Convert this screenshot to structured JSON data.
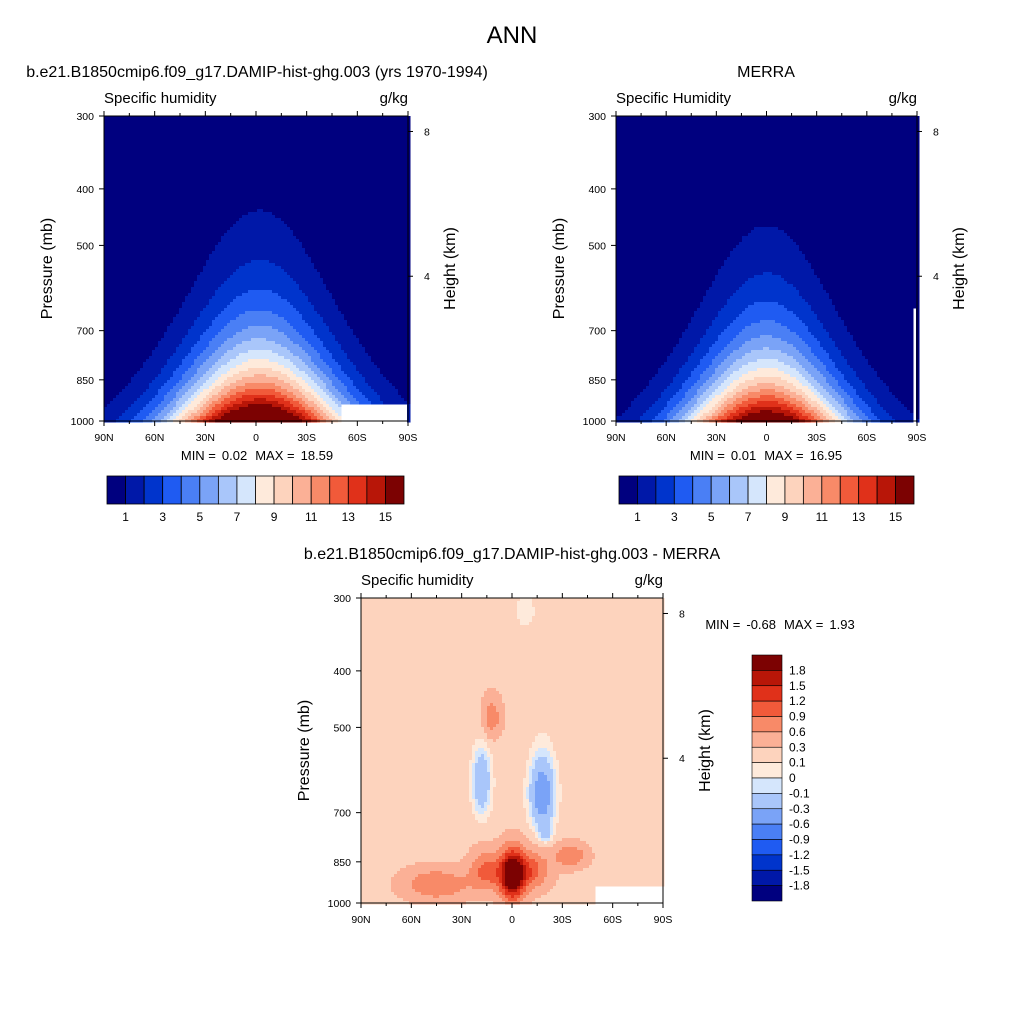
{
  "main_title": "ANN",
  "colors": {
    "model_obs_palette": [
      "#00007f",
      "#0018a8",
      "#0034cc",
      "#1f5bf2",
      "#4a7ff5",
      "#7aa3f7",
      "#a9c6fa",
      "#d5e6fc",
      "#feeadb",
      "#fdd3bd",
      "#fbb096",
      "#f88a68",
      "#f15a3a",
      "#e0311a",
      "#b81608",
      "#7c0202"
    ],
    "diff_palette": [
      "#00007f",
      "#0018a8",
      "#0034cc",
      "#1f5bf2",
      "#4a7ff5",
      "#7aa3f7",
      "#a9c6fa",
      "#d5e6fc",
      "#feeadb",
      "#fdd3bd",
      "#fbb096",
      "#f88a68",
      "#f15a3a",
      "#e0311a",
      "#b81608",
      "#7c0202"
    ]
  },
  "chart_data": [
    {
      "type": "heatmap",
      "panel_title": "b.e21.B1850cmip6.f09_g17.DAMIP-hist-ghg.003 (yrs 1970-1994)",
      "left_label": "Specific humidity",
      "right_label": "g/kg",
      "ylabel": "Pressure (mb)",
      "ylabel_right": "Height (km)",
      "x_ticks": [
        "90N",
        "60N",
        "30N",
        "0",
        "30S",
        "60S",
        "90S"
      ],
      "x_values": [
        90,
        60,
        30,
        0,
        -30,
        -60,
        -90
      ],
      "y_ticks": [
        "300",
        "400",
        "500",
        "700",
        "850",
        "1000"
      ],
      "y_values": [
        300,
        400,
        500,
        700,
        850,
        1000
      ],
      "y_right_ticks": [
        "8",
        "4"
      ],
      "y_right_values": [
        8,
        4
      ],
      "ylim": [
        1000,
        300
      ],
      "min_label": "MIN =",
      "min_value": "0.02",
      "max_label": "MAX =",
      "max_value": "18.59",
      "levels": [
        0,
        1,
        2,
        3,
        4,
        5,
        6,
        7,
        8,
        9,
        10,
        11,
        12,
        13,
        14,
        15
      ],
      "colorbar_labels": [
        "1",
        "3",
        "5",
        "7",
        "9",
        "11",
        "13",
        "15"
      ],
      "field": {
        "peak": 18.59,
        "center_lat": -2,
        "lat_width_base": 30,
        "lat_width_gain": 2.4,
        "scale_height": 0.45
      },
      "missing_region": [
        {
          "lat_from": -50,
          "lat_to": -90,
          "p_from": 930,
          "p_to": 1000
        }
      ]
    },
    {
      "type": "heatmap",
      "panel_title": "MERRA",
      "left_label": "Specific Humidity",
      "right_label": "g/kg",
      "ylabel": "Pressure (mb)",
      "ylabel_right": "Height (km)",
      "x_ticks": [
        "90N",
        "60N",
        "30N",
        "0",
        "30S",
        "60S",
        "90S"
      ],
      "x_values": [
        90,
        60,
        30,
        0,
        -30,
        -60,
        -90
      ],
      "y_ticks": [
        "300",
        "400",
        "500",
        "700",
        "850",
        "1000"
      ],
      "y_values": [
        300,
        400,
        500,
        700,
        850,
        1000
      ],
      "y_right_ticks": [
        "8",
        "4"
      ],
      "y_right_values": [
        8,
        4
      ],
      "ylim": [
        1000,
        300
      ],
      "min_label": "MIN =",
      "min_value": "0.01",
      "max_label": "MAX =",
      "max_value": "16.95",
      "levels": [
        0,
        1,
        2,
        3,
        4,
        5,
        6,
        7,
        8,
        9,
        10,
        11,
        12,
        13,
        14,
        15
      ],
      "colorbar_labels": [
        "1",
        "3",
        "5",
        "7",
        "9",
        "11",
        "13",
        "15"
      ],
      "field": {
        "peak": 16.95,
        "center_lat": 0,
        "lat_width_base": 28,
        "lat_width_gain": 2.2,
        "scale_height": 0.43
      },
      "missing_region": [
        {
          "lat_from": -88,
          "lat_to": -90,
          "p_from": 640,
          "p_to": 1000
        }
      ]
    },
    {
      "type": "heatmap",
      "panel_title": "b.e21.B1850cmip6.f09_g17.DAMIP-hist-ghg.003 - MERRA",
      "left_label": "Specific humidity",
      "right_label": "g/kg",
      "ylabel": "Pressure (mb)",
      "ylabel_right": "Height (km)",
      "x_ticks": [
        "90N",
        "60N",
        "30N",
        "0",
        "30S",
        "60S",
        "90S"
      ],
      "x_values": [
        90,
        60,
        30,
        0,
        -30,
        -60,
        -90
      ],
      "y_ticks": [
        "300",
        "400",
        "500",
        "700",
        "850",
        "1000"
      ],
      "y_values": [
        300,
        400,
        500,
        700,
        850,
        1000
      ],
      "y_right_ticks": [
        "8",
        "4"
      ],
      "y_right_values": [
        8,
        4
      ],
      "ylim": [
        1000,
        300
      ],
      "min_label": "MIN =",
      "min_value": "-0.68",
      "max_label": "MAX =",
      "max_value": "1.93",
      "levels": [
        -1.8,
        -1.5,
        -1.2,
        -0.9,
        -0.6,
        -0.3,
        -0.1,
        0,
        0.1,
        0.3,
        0.6,
        0.9,
        1.2,
        1.5,
        1.8
      ],
      "colorbar_labels": [
        "1.8",
        "1.5",
        "1.2",
        "0.9",
        "0.6",
        "0.3",
        "0.1",
        "0",
        "-0.1",
        "-0.3",
        "-0.6",
        "-0.9",
        "-1.2",
        "-1.5",
        "-1.8"
      ],
      "missing_region": [
        {
          "lat_from": -50,
          "lat_to": -90,
          "p_from": 930,
          "p_to": 1000
        }
      ],
      "anomalies": [
        {
          "lat": 0,
          "p": 900,
          "amp": 1.9,
          "sx": 7,
          "sy": 90
        },
        {
          "lat": -10,
          "p": 880,
          "amp": 0.9,
          "sx": 12,
          "sy": 70
        },
        {
          "lat": 15,
          "p": 880,
          "amp": 0.8,
          "sx": 10,
          "sy": 70
        },
        {
          "lat": 45,
          "p": 930,
          "amp": 0.7,
          "sx": 20,
          "sy": 60
        },
        {
          "lat": -35,
          "p": 830,
          "amp": 0.7,
          "sx": 10,
          "sy": 40
        },
        {
          "lat": 12,
          "p": 480,
          "amp": 0.6,
          "sx": 6,
          "sy": 40
        },
        {
          "lat": 18,
          "p": 620,
          "amp": -0.5,
          "sx": 6,
          "sy": 90
        },
        {
          "lat": -18,
          "p": 650,
          "amp": -0.68,
          "sx": 8,
          "sy": 100
        },
        {
          "lat": -20,
          "p": 760,
          "amp": -0.3,
          "sx": 4,
          "sy": 30
        },
        {
          "lat": -8,
          "p": 315,
          "amp": -0.2,
          "sx": 6,
          "sy": 25
        }
      ],
      "background": 0.2
    }
  ]
}
